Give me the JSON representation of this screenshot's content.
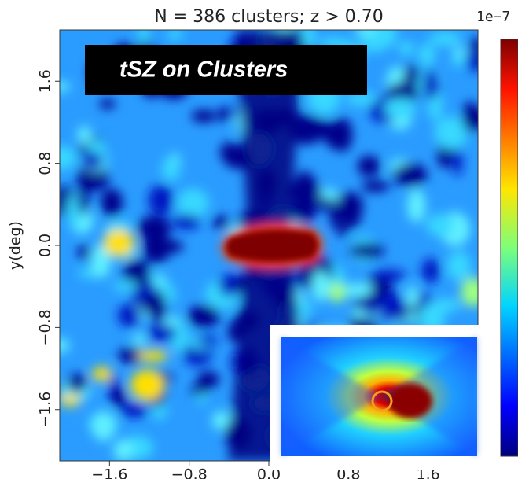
{
  "chart_data": {
    "type": "heatmap",
    "title": "N =   386 clusters; z > 0.70",
    "annotation": "tSZ on Clusters",
    "ylabel": "y(deg)",
    "colorbar_label": "1e−7",
    "xlim": [
      -2.1,
      2.1
    ],
    "ylim": [
      -2.1,
      2.1
    ],
    "xticks": [
      {
        "value": -1.6,
        "label": "−1.6"
      },
      {
        "value": -0.8,
        "label": "−0.8"
      },
      {
        "value": 0,
        "label": "0.0"
      },
      0.8,
      1.6
    ],
    "yticks": [
      {
        "value": -1.6,
        "label": "−1.6"
      },
      {
        "value": -0.8,
        "label": "−0.8"
      },
      {
        "value": 0,
        "label": "0.0"
      },
      0.8,
      1.6
    ],
    "colormap": "jet"
  }
}
